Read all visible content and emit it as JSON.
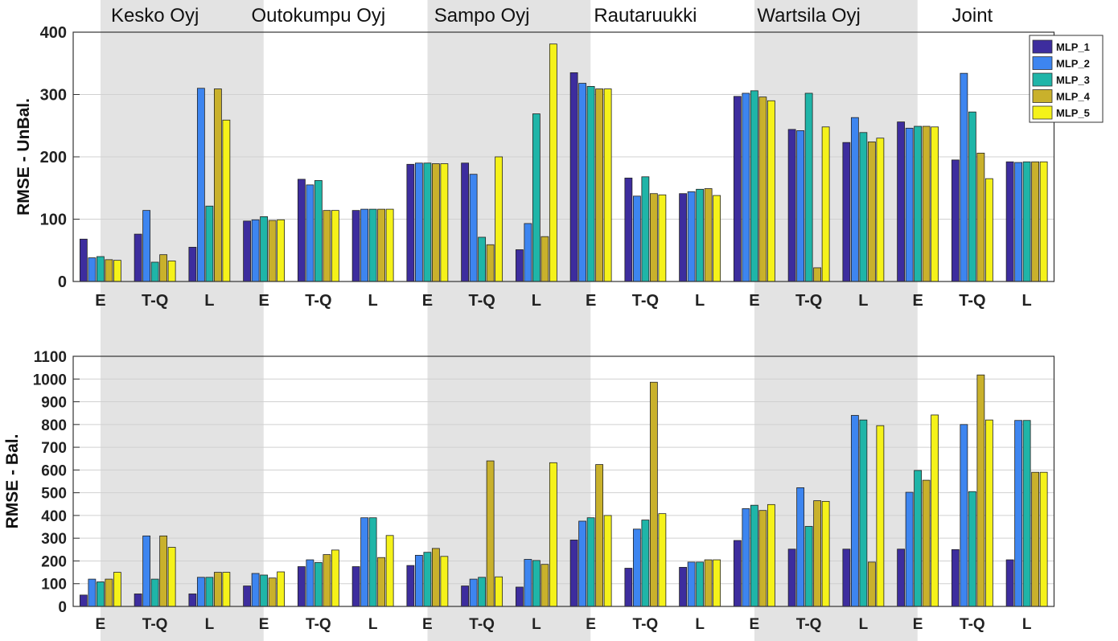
{
  "chart_data": {
    "type": "bar",
    "companies": [
      "Kesko Oyj",
      "Outokumpu Oyj",
      "Sampo Oyj",
      "Rautaruukki",
      "Wartsila Oyj",
      "Joint"
    ],
    "methods": [
      "E",
      "T-Q",
      "L"
    ],
    "series_names": [
      "MLP_1",
      "MLP_2",
      "MLP_3",
      "MLP_4",
      "MLP_5"
    ],
    "colors": [
      "#3d2d9e",
      "#3d85f0",
      "#1fb5a8",
      "#c9b12c",
      "#f5f21a"
    ],
    "legend_position": "top-right",
    "grid": true,
    "panels": [
      {
        "ylabel": "RMSE - UnBal.",
        "ylim": [
          0,
          400
        ],
        "yticks": [
          "0",
          "100",
          "200",
          "300",
          "400"
        ],
        "groups": [
          [
            68,
            38,
            40,
            35,
            34
          ],
          [
            76,
            114,
            31,
            43,
            33
          ],
          [
            55,
            310,
            121,
            309,
            259
          ],
          [
            97,
            99,
            104,
            98,
            99
          ],
          [
            164,
            155,
            162,
            114,
            114
          ],
          [
            114,
            116,
            116,
            116,
            116
          ],
          [
            188,
            190,
            190,
            189,
            189
          ],
          [
            190,
            172,
            71,
            59,
            200
          ],
          [
            51,
            93,
            269,
            72,
            381
          ],
          [
            335,
            318,
            313,
            309,
            309
          ],
          [
            166,
            137,
            168,
            141,
            139
          ],
          [
            141,
            144,
            148,
            149,
            138
          ],
          [
            297,
            302,
            306,
            296,
            290
          ],
          [
            244,
            242,
            302,
            22,
            248
          ],
          [
            223,
            263,
            239,
            224,
            230
          ],
          [
            256,
            246,
            249,
            249,
            248
          ],
          [
            195,
            334,
            272,
            206,
            165
          ],
          [
            192,
            191,
            192,
            192,
            192
          ]
        ]
      },
      {
        "ylabel": "RMSE - Bal.",
        "ylim": [
          0,
          1100
        ],
        "yticks": [
          "0",
          "100",
          "200",
          "300",
          "400",
          "500",
          "600",
          "700",
          "800",
          "900",
          "1000",
          "1100"
        ],
        "groups": [
          [
            50,
            120,
            108,
            120,
            150
          ],
          [
            55,
            310,
            120,
            310,
            260
          ],
          [
            55,
            128,
            128,
            150,
            150
          ],
          [
            90,
            145,
            138,
            125,
            152
          ],
          [
            175,
            205,
            193,
            228,
            248
          ],
          [
            175,
            390,
            390,
            215,
            312
          ],
          [
            180,
            225,
            238,
            255,
            220
          ],
          [
            90,
            120,
            128,
            640,
            130
          ],
          [
            85,
            207,
            202,
            185,
            632
          ],
          [
            292,
            375,
            390,
            624,
            400
          ],
          [
            168,
            340,
            380,
            986,
            408
          ],
          [
            172,
            195,
            195,
            205,
            205
          ],
          [
            290,
            430,
            445,
            422,
            448
          ],
          [
            252,
            522,
            352,
            465,
            462
          ],
          [
            252,
            840,
            820,
            195,
            795
          ],
          [
            252,
            502,
            598,
            555,
            842
          ],
          [
            250,
            800,
            505,
            1018,
            820
          ],
          [
            205,
            818,
            818,
            590,
            590
          ]
        ]
      }
    ]
  }
}
